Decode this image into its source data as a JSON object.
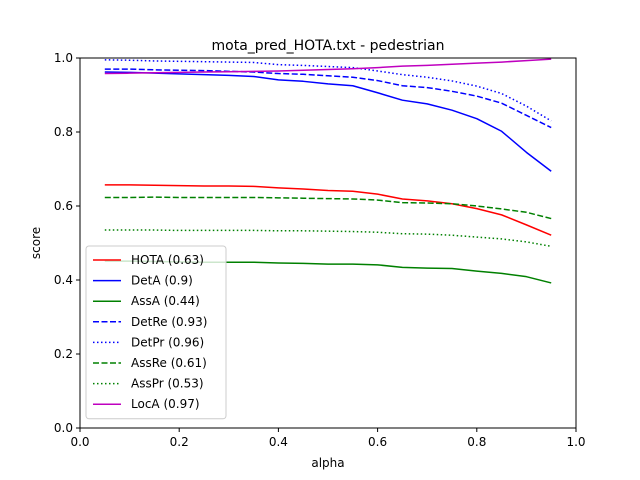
{
  "chart_data": {
    "type": "line",
    "title": "mota_pred_HOTA.txt - pedestrian",
    "xlabel": "alpha",
    "ylabel": "score",
    "xlim": [
      0.0,
      1.0
    ],
    "ylim": [
      0.0,
      1.0
    ],
    "xticks": [
      "0.0",
      "0.2",
      "0.4",
      "0.6",
      "0.8",
      "1.0"
    ],
    "yticks": [
      "0.0",
      "0.2",
      "0.4",
      "0.6",
      "0.8",
      "1.0"
    ],
    "grid": false,
    "legend_position": "lower-left",
    "x": [
      0.05,
      0.1,
      0.15,
      0.2,
      0.25,
      0.3,
      0.35,
      0.4,
      0.45,
      0.5,
      0.55,
      0.6,
      0.65,
      0.7,
      0.75,
      0.8,
      0.85,
      0.9,
      0.95
    ],
    "series": [
      {
        "name": "HOTA (0.63)",
        "color": "#ff0000",
        "style": "solid",
        "values": [
          0.657,
          0.657,
          0.656,
          0.655,
          0.654,
          0.654,
          0.653,
          0.649,
          0.646,
          0.642,
          0.64,
          0.632,
          0.619,
          0.614,
          0.606,
          0.593,
          0.576,
          0.549,
          0.521
        ]
      },
      {
        "name": "DetA (0.9)",
        "color": "#0000ff",
        "style": "solid",
        "values": [
          0.962,
          0.961,
          0.959,
          0.957,
          0.955,
          0.953,
          0.95,
          0.941,
          0.937,
          0.93,
          0.925,
          0.906,
          0.886,
          0.876,
          0.859,
          0.836,
          0.802,
          0.745,
          0.694
        ]
      },
      {
        "name": "AssA (0.44)",
        "color": "#008000",
        "style": "solid",
        "values": [
          0.451,
          0.451,
          0.45,
          0.449,
          0.448,
          0.448,
          0.448,
          0.446,
          0.445,
          0.443,
          0.443,
          0.441,
          0.434,
          0.432,
          0.431,
          0.424,
          0.418,
          0.409,
          0.392
        ]
      },
      {
        "name": "DetRe (0.93)",
        "color": "#0000ff",
        "style": "dashed",
        "values": [
          0.97,
          0.97,
          0.968,
          0.967,
          0.966,
          0.964,
          0.962,
          0.958,
          0.956,
          0.952,
          0.948,
          0.939,
          0.925,
          0.92,
          0.91,
          0.897,
          0.878,
          0.845,
          0.812
        ]
      },
      {
        "name": "DetPr (0.96)",
        "color": "#0000ff",
        "style": "dotted",
        "values": [
          0.995,
          0.994,
          0.992,
          0.991,
          0.99,
          0.989,
          0.988,
          0.982,
          0.98,
          0.977,
          0.974,
          0.965,
          0.955,
          0.948,
          0.938,
          0.924,
          0.904,
          0.87,
          0.83
        ]
      },
      {
        "name": "AssRe (0.61)",
        "color": "#008000",
        "style": "dashed",
        "values": [
          0.623,
          0.623,
          0.624,
          0.623,
          0.623,
          0.623,
          0.623,
          0.622,
          0.621,
          0.62,
          0.619,
          0.616,
          0.609,
          0.608,
          0.606,
          0.6,
          0.592,
          0.583,
          0.566
        ]
      },
      {
        "name": "AssPr (0.53)",
        "color": "#008000",
        "style": "dotted",
        "values": [
          0.535,
          0.535,
          0.535,
          0.534,
          0.534,
          0.534,
          0.534,
          0.533,
          0.533,
          0.532,
          0.531,
          0.529,
          0.525,
          0.524,
          0.521,
          0.516,
          0.511,
          0.503,
          0.491
        ]
      },
      {
        "name": "LocA (0.97)",
        "color": "#bf00bf",
        "style": "solid",
        "values": [
          0.958,
          0.959,
          0.96,
          0.961,
          0.962,
          0.963,
          0.964,
          0.965,
          0.967,
          0.969,
          0.971,
          0.974,
          0.978,
          0.98,
          0.983,
          0.986,
          0.989,
          0.993,
          0.997
        ]
      }
    ]
  }
}
